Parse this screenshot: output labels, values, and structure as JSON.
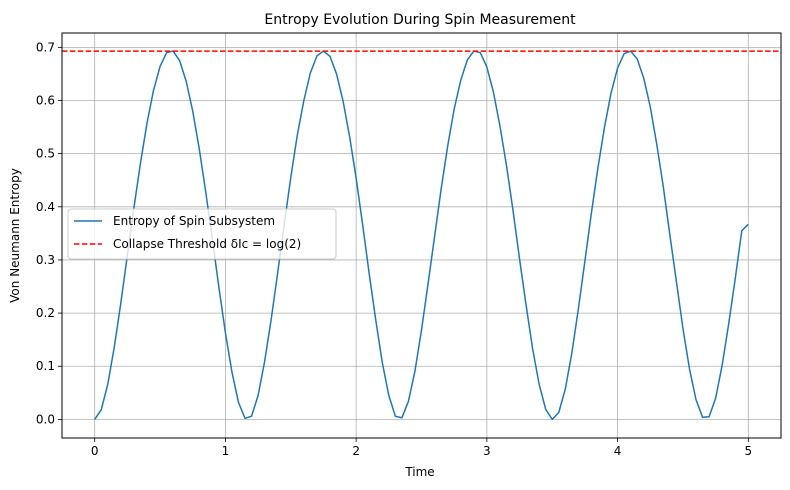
{
  "chart_data": {
    "type": "line",
    "title": "Entropy Evolution During Spin Measurement",
    "xlabel": "Time",
    "ylabel": "Von Neumann Entropy",
    "xlim": [
      -0.25,
      5.25
    ],
    "ylim": [
      -0.035,
      0.727
    ],
    "xticks": [
      0,
      1,
      2,
      3,
      4,
      5
    ],
    "xtick_labels": [
      "0",
      "1",
      "2",
      "3",
      "4",
      "5"
    ],
    "yticks": [
      0.0,
      0.1,
      0.2,
      0.3,
      0.4,
      0.5,
      0.6,
      0.7
    ],
    "ytick_labels": [
      "0.0",
      "0.1",
      "0.2",
      "0.3",
      "0.4",
      "0.5",
      "0.6",
      "0.7"
    ],
    "grid": true,
    "legend_position": "center-left",
    "series": [
      {
        "name": "Entropy of Spin Subsystem",
        "color": "#1f77b4",
        "style": "solid",
        "x": [
          0.0,
          0.05,
          0.1,
          0.15,
          0.2,
          0.25,
          0.3,
          0.35,
          0.4,
          0.45,
          0.5,
          0.55,
          0.6,
          0.65,
          0.7,
          0.75,
          0.8,
          0.85,
          0.9,
          0.95,
          1.0,
          1.05,
          1.1,
          1.15,
          1.2,
          1.25,
          1.3,
          1.35,
          1.4,
          1.45,
          1.5,
          1.55,
          1.6,
          1.65,
          1.7,
          1.75,
          1.8,
          1.85,
          1.9,
          1.95,
          2.0,
          2.05,
          2.1,
          2.15,
          2.2,
          2.25,
          2.3,
          2.35,
          2.4,
          2.45,
          2.5,
          2.55,
          2.6,
          2.65,
          2.7,
          2.75,
          2.8,
          2.85,
          2.9,
          2.95,
          3.0,
          3.05,
          3.1,
          3.15,
          3.2,
          3.25,
          3.3,
          3.35,
          3.4,
          3.45,
          3.5,
          3.55,
          3.6,
          3.65,
          3.7,
          3.75,
          3.8,
          3.85,
          3.9,
          3.95,
          4.0,
          4.05,
          4.1,
          4.15,
          4.2,
          4.25,
          4.3,
          4.35,
          4.4,
          4.45,
          4.5,
          4.55,
          4.6,
          4.65,
          4.7,
          4.75,
          4.8,
          4.85,
          4.9,
          4.95,
          5.0
        ],
        "y": [
          0.0,
          0.018,
          0.066,
          0.136,
          0.219,
          0.309,
          0.398,
          0.482,
          0.557,
          0.619,
          0.664,
          0.69,
          0.693,
          0.675,
          0.636,
          0.58,
          0.509,
          0.427,
          0.339,
          0.249,
          0.163,
          0.089,
          0.032,
          0.002,
          0.006,
          0.045,
          0.109,
          0.188,
          0.276,
          0.367,
          0.455,
          0.535,
          0.6,
          0.652,
          0.684,
          0.693,
          0.683,
          0.65,
          0.599,
          0.532,
          0.454,
          0.366,
          0.274,
          0.187,
          0.107,
          0.045,
          0.006,
          0.003,
          0.034,
          0.091,
          0.168,
          0.255,
          0.344,
          0.433,
          0.514,
          0.584,
          0.638,
          0.676,
          0.693,
          0.69,
          0.663,
          0.616,
          0.552,
          0.478,
          0.393,
          0.302,
          0.215,
          0.133,
          0.066,
          0.019,
          0.0,
          0.013,
          0.057,
          0.125,
          0.208,
          0.298,
          0.389,
          0.474,
          0.55,
          0.614,
          0.661,
          0.688,
          0.693,
          0.678,
          0.642,
          0.588,
          0.517,
          0.437,
          0.347,
          0.259,
          0.171,
          0.095,
          0.037,
          0.004,
          0.005,
          0.04,
          0.102,
          0.18,
          0.265,
          0.355,
          0.367
        ]
      },
      {
        "name": "Collapse Threshold δIc = log(2)",
        "color": "#ff0000",
        "style": "dashed",
        "y_constant": 0.693
      }
    ]
  }
}
